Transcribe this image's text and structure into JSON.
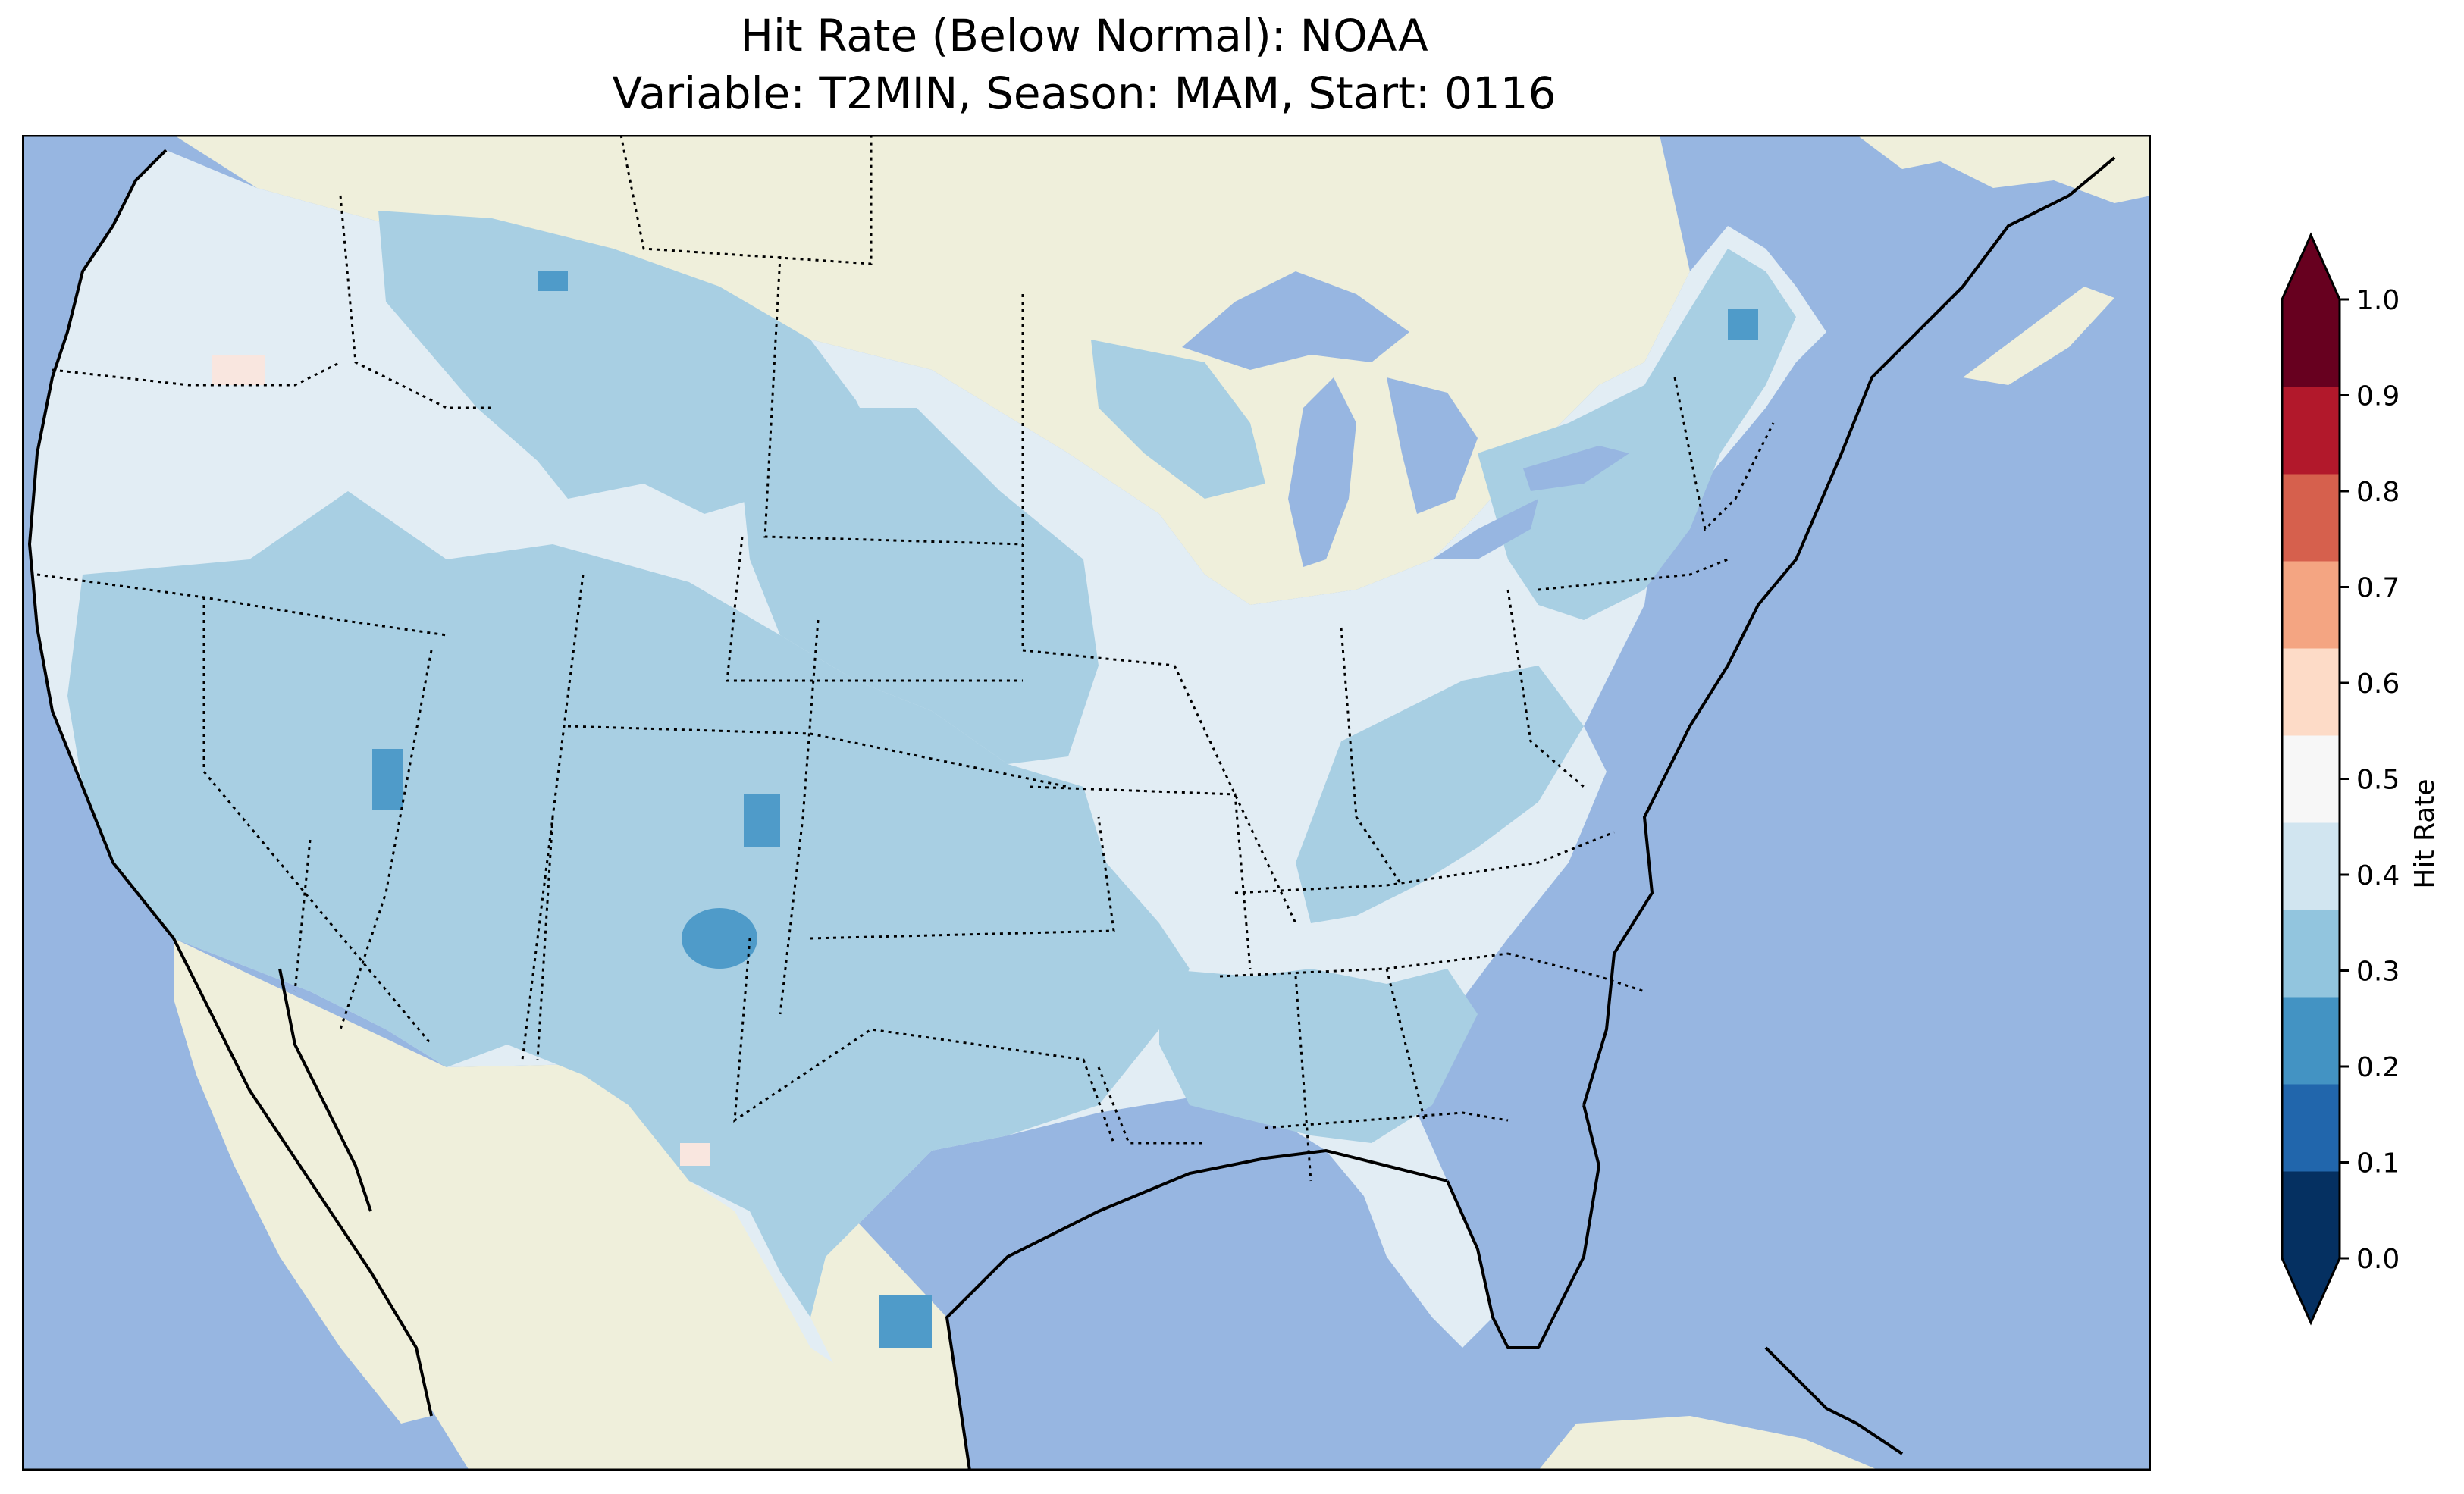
{
  "title_line_1": "Hit Rate (Below Normal): NOAA",
  "title_line_2": "Variable: T2MIN, Season: MAM, Start: 0116",
  "colorbar": {
    "label": "Hit Rate",
    "ticks": [
      "0.0",
      "0.1",
      "0.2",
      "0.3",
      "0.4",
      "0.5",
      "0.6",
      "0.7",
      "0.8",
      "0.9",
      "1.0"
    ],
    "colors": [
      "#053061",
      "#2166ac",
      "#4393c3",
      "#92c5de",
      "#d1e5f0",
      "#f7f7f7",
      "#fddbc7",
      "#f4a582",
      "#d6604d",
      "#b2182b",
      "#67001f"
    ],
    "under_color": "#053061",
    "over_color": "#67001f"
  },
  "map_colors": {
    "ocean": "#97b6e1",
    "land": "#efefdb",
    "hit_0.2_0.3": "#4f9bc9",
    "hit_0.3_0.4": "#a8cfe3",
    "hit_0.4_0.5": "#e2edf4",
    "hit_0.5_0.6": "#f9e6df"
  }
}
